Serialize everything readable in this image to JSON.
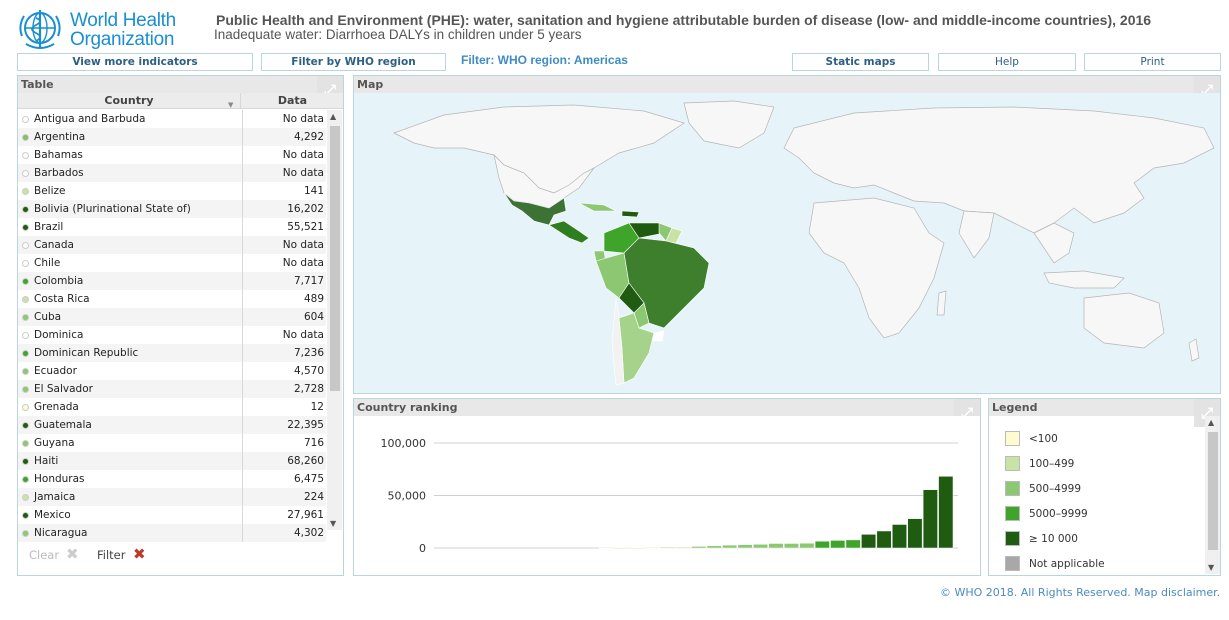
{
  "header": {
    "org_line1": "World Health",
    "org_line2": "Organization",
    "title": "Public Health and Environment (PHE): water, sanitation and hygiene attributable burden of disease (low- and middle-income countries), 2016",
    "subtitle": "Inadequate water: Diarrhoea DALYs in children under 5 years"
  },
  "toolbar": {
    "view_more": "View more indicators",
    "filter_region": "Filter by WHO region",
    "active_filter": "Filter: WHO region: Americas",
    "static_maps": "Static maps",
    "help": "Help",
    "print": "Print"
  },
  "table_panel": {
    "title": "Table",
    "col_country": "Country",
    "col_data": "Data",
    "clear_label": "Clear",
    "filter_label": "Filter",
    "rows": [
      {
        "country": "Antigua and Barbuda",
        "value": "No data",
        "color": "#ffffff"
      },
      {
        "country": "Argentina",
        "value": "4,292",
        "color": "#7fc06a"
      },
      {
        "country": "Bahamas",
        "value": "No data",
        "color": "#ffffff"
      },
      {
        "country": "Barbados",
        "value": "No data",
        "color": "#ffffff"
      },
      {
        "country": "Belize",
        "value": "141",
        "color": "#c9e3a6"
      },
      {
        "country": "Bolivia (Plurinational State of)",
        "value": "16,202",
        "color": "#1f5c12"
      },
      {
        "country": "Brazil",
        "value": "55,521",
        "color": "#1f5c12"
      },
      {
        "country": "Canada",
        "value": "No data",
        "color": "#ffffff"
      },
      {
        "country": "Chile",
        "value": "No data",
        "color": "#ffffff"
      },
      {
        "country": "Colombia",
        "value": "7,717",
        "color": "#3fa52a"
      },
      {
        "country": "Costa Rica",
        "value": "489",
        "color": "#c9e3a6"
      },
      {
        "country": "Cuba",
        "value": "604",
        "color": "#8cc772"
      },
      {
        "country": "Dominica",
        "value": "No data",
        "color": "#ffffff"
      },
      {
        "country": "Dominican Republic",
        "value": "7,236",
        "color": "#3fa52a"
      },
      {
        "country": "Ecuador",
        "value": "4,570",
        "color": "#8cc772"
      },
      {
        "country": "El Salvador",
        "value": "2,728",
        "color": "#8cc772"
      },
      {
        "country": "Grenada",
        "value": "12",
        "color": "#fffbd0"
      },
      {
        "country": "Guatemala",
        "value": "22,395",
        "color": "#1f5c12"
      },
      {
        "country": "Guyana",
        "value": "716",
        "color": "#8cc772"
      },
      {
        "country": "Haiti",
        "value": "68,260",
        "color": "#1f5c12"
      },
      {
        "country": "Honduras",
        "value": "6,475",
        "color": "#3fa52a"
      },
      {
        "country": "Jamaica",
        "value": "224",
        "color": "#c9e3a6"
      },
      {
        "country": "Mexico",
        "value": "27,961",
        "color": "#1f5c12"
      },
      {
        "country": "Nicaragua",
        "value": "4,302",
        "color": "#8cc772"
      }
    ]
  },
  "map_panel": {
    "title": "Map"
  },
  "ranking_panel": {
    "title": "Country ranking",
    "chart_data": {
      "type": "bar",
      "y_ticks": [
        "100,000",
        "50,000",
        "0"
      ],
      "ylim": [
        0,
        100000
      ],
      "values": [
        12,
        141,
        224,
        489,
        604,
        716,
        1500,
        2100,
        2728,
        3200,
        3500,
        4292,
        4302,
        4570,
        6475,
        7236,
        7717,
        13000,
        16202,
        22395,
        27961,
        55521,
        68260
      ],
      "colors": [
        "#fffbd0",
        "#c9e3a6",
        "#c9e3a6",
        "#c9e3a6",
        "#8cc772",
        "#8cc772",
        "#8cc772",
        "#8cc772",
        "#8cc772",
        "#8cc772",
        "#8cc772",
        "#8cc772",
        "#8cc772",
        "#8cc772",
        "#3fa52a",
        "#3fa52a",
        "#3fa52a",
        "#1f5c12",
        "#1f5c12",
        "#1f5c12",
        "#1f5c12",
        "#1f5c12",
        "#1f5c12"
      ]
    }
  },
  "legend_panel": {
    "title": "Legend",
    "items": [
      {
        "label": "<100",
        "color": "#fffbd0"
      },
      {
        "label": "100–499",
        "color": "#c9e3a6"
      },
      {
        "label": "500–4999",
        "color": "#8cc772"
      },
      {
        "label": "5000–9999",
        "color": "#3fa52a"
      },
      {
        "label": "≥ 10 000",
        "color": "#1f5c12"
      },
      {
        "label": "Not applicable",
        "color": "#a8a8a8"
      }
    ]
  },
  "footer": {
    "copyright": "© WHO 2018. All Rights Reserved. Map disclaimer."
  }
}
